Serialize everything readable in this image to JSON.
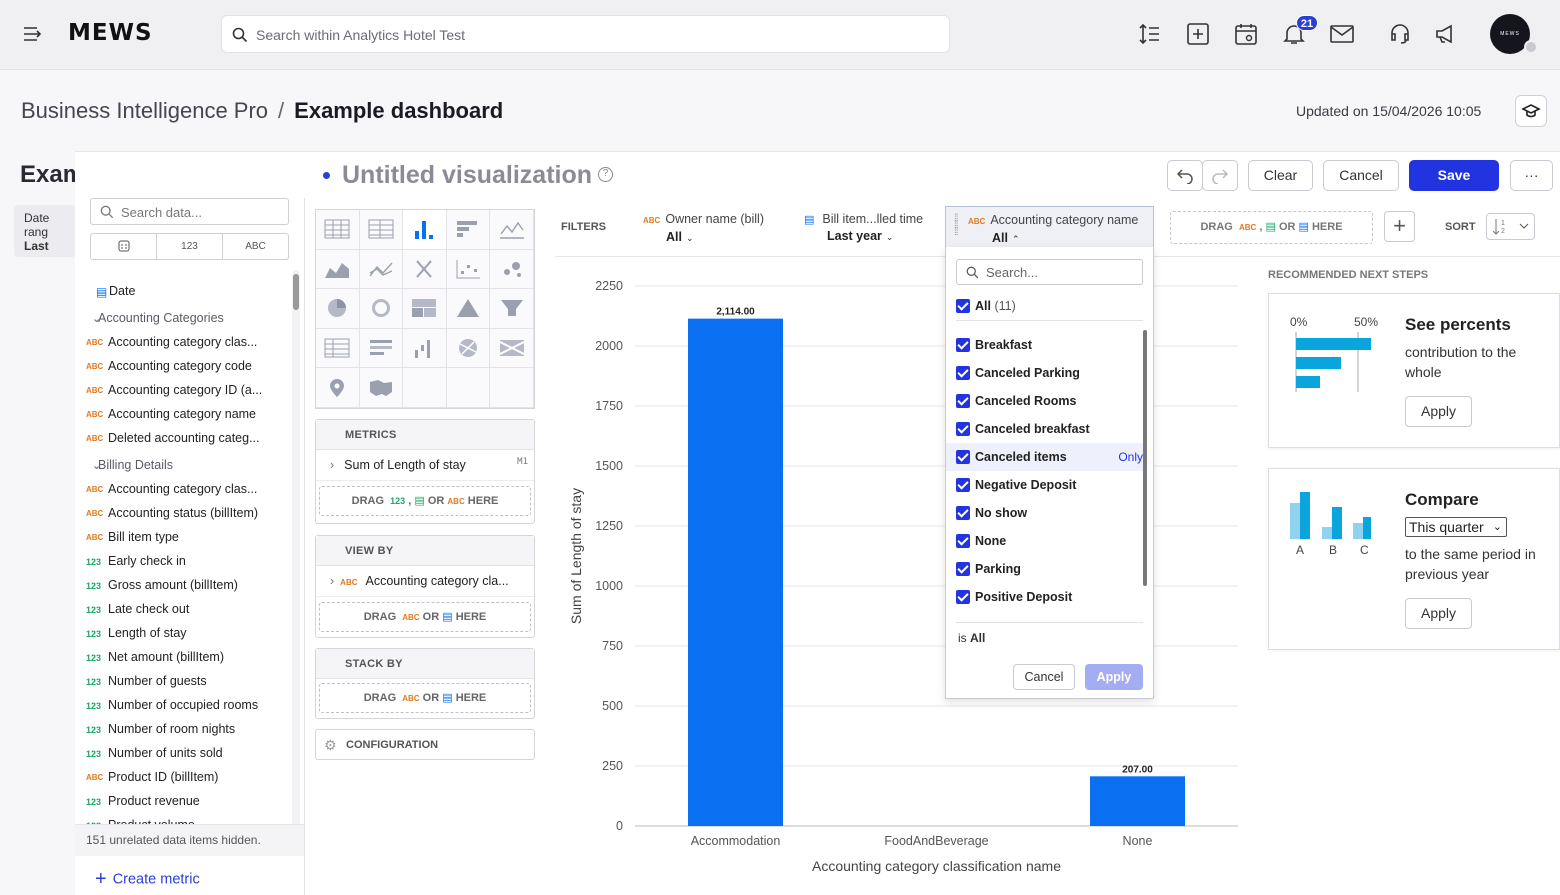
{
  "topbar": {
    "logo": "MEWS",
    "search_placeholder": "Search within Analytics Hotel Test",
    "notification_count": "21",
    "avatar_text": "MEWS"
  },
  "header": {
    "breadcrumb_parent": "Business Intelligence Pro",
    "breadcrumb_separator": "/",
    "breadcrumb_current": "Example dashboard",
    "updated": "Updated on 15/04/2026 10:05"
  },
  "background_dashboard": {
    "title": "Exam",
    "date_label": "Date rang",
    "date_value": "Last year"
  },
  "data_panel": {
    "search_placeholder": "Search data...",
    "type_tabs": [
      "123",
      "ABC"
    ],
    "items": [
      {
        "kind": "date",
        "label": "Date"
      },
      {
        "kind": "group",
        "label": "Accounting Categories"
      },
      {
        "kind": "abc",
        "label": "Accounting category clas..."
      },
      {
        "kind": "abc",
        "label": "Accounting category code"
      },
      {
        "kind": "abc",
        "label": "Accounting category ID (a..."
      },
      {
        "kind": "abc",
        "label": "Accounting category name"
      },
      {
        "kind": "abc",
        "label": "Deleted accounting categ..."
      },
      {
        "kind": "group",
        "label": "Billing Details"
      },
      {
        "kind": "abc",
        "label": "Accounting category clas..."
      },
      {
        "kind": "abc",
        "label": "Accounting status (billItem)"
      },
      {
        "kind": "abc",
        "label": "Bill item type"
      },
      {
        "kind": "num",
        "label": "Early check in"
      },
      {
        "kind": "num",
        "label": "Gross amount (billItem)"
      },
      {
        "kind": "num",
        "label": "Late check out"
      },
      {
        "kind": "num",
        "label": "Length of stay"
      },
      {
        "kind": "num",
        "label": "Net amount (billItem)"
      },
      {
        "kind": "num",
        "label": "Number of guests"
      },
      {
        "kind": "num",
        "label": "Number of occupied rooms"
      },
      {
        "kind": "num",
        "label": "Number of room nights"
      },
      {
        "kind": "num",
        "label": "Number of units sold"
      },
      {
        "kind": "abc",
        "label": "Product ID (billItem)"
      },
      {
        "kind": "num",
        "label": "Product revenue"
      },
      {
        "kind": "num",
        "label": "Product volume"
      }
    ],
    "hidden_note": "151 unrelated data items hidden.",
    "create_metric": "Create metric"
  },
  "visualization": {
    "title": "Untitled visualization",
    "help": "?",
    "buttons": {
      "clear": "Clear",
      "cancel": "Cancel",
      "save": "Save",
      "more": "···"
    }
  },
  "buckets": {
    "metrics": {
      "header": "METRICS",
      "item": "Sum of Length of stay",
      "item_tag": "M1",
      "drop": [
        "DRAG",
        "123",
        ",",
        "OR",
        "ABC",
        "HERE"
      ]
    },
    "view_by": {
      "header": "VIEW BY",
      "item": "Accounting category cla...",
      "drop": [
        "DRAG",
        "ABC",
        "OR",
        "HERE"
      ]
    },
    "stack_by": {
      "header": "STACK BY",
      "drop": [
        "DRAG",
        "ABC",
        "OR",
        "HERE"
      ]
    },
    "configuration": "CONFIGURATION"
  },
  "filters": {
    "label": "FILTERS",
    "items": [
      {
        "name": "Owner name (bill)",
        "value": "All",
        "type": "ABC"
      },
      {
        "name": "Bill item...lled time",
        "value": "Last year",
        "type": "date"
      },
      {
        "name": "Accounting category name",
        "value": "All",
        "type": "ABC"
      }
    ],
    "drag_hint": [
      "DRAG",
      "ABC",
      ",",
      "OR",
      "HERE"
    ],
    "sort_label": "SORT"
  },
  "filter_dropdown": {
    "search_placeholder": "Search...",
    "all_label": "All",
    "all_count": "(11)",
    "options": [
      "Breakfast",
      "Canceled Parking",
      "Canceled Rooms",
      "Canceled breakfast",
      "Canceled items",
      "Negative Deposit",
      "No show",
      "None",
      "Parking",
      "Positive Deposit"
    ],
    "highlighted_option": "Canceled items",
    "only_label": "Only",
    "is_prefix": "is",
    "is_value": "All",
    "cancel": "Cancel",
    "apply": "Apply"
  },
  "chart_data": {
    "type": "bar",
    "categories": [
      "Accommodation",
      "FoodAndBeverage",
      "None"
    ],
    "values": [
      2114,
      0,
      207
    ],
    "data_labels": [
      "2,114.00",
      "",
      "207.00"
    ],
    "xlabel": "Accounting category classification name",
    "ylabel": "Sum of Length of stay",
    "ylim": [
      0,
      2250
    ],
    "yticks": [
      0,
      250,
      500,
      750,
      1000,
      1250,
      1500,
      1750,
      2000,
      2250
    ],
    "bar_color": "#0a6ff0",
    "grid": true
  },
  "recommendations": {
    "label": "RECOMMENDED NEXT STEPS",
    "percents": {
      "title": "See percents",
      "desc": "contribution to the whole",
      "apply": "Apply",
      "axis_left": "0%",
      "axis_right": "50%"
    },
    "compare": {
      "title": "Compare",
      "select": "This quarter",
      "desc": "to the same period in previous year",
      "apply": "Apply",
      "labels": [
        "A",
        "B",
        "C"
      ]
    }
  },
  "colors": {
    "accent": "#2134e0",
    "bar": "#0a6ff0",
    "rec_bar": "#0aa5dc"
  }
}
